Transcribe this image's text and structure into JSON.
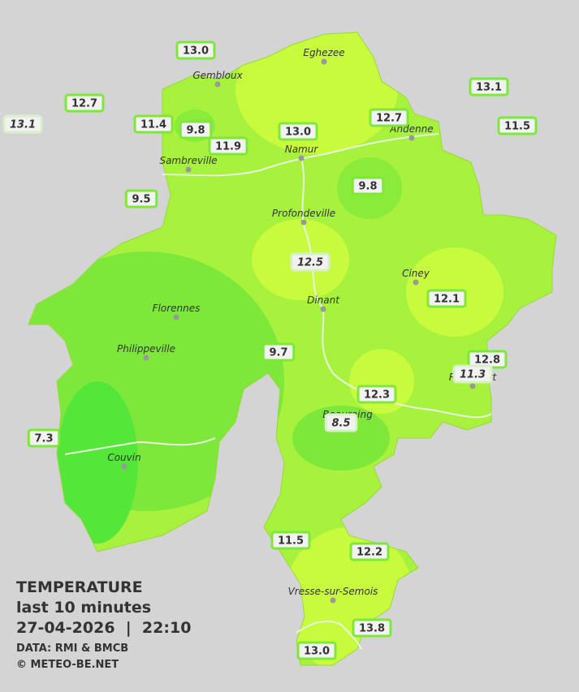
{
  "header": {
    "title": "TEMPERATURE",
    "subtitle": "last 10 minutes",
    "datetime": "27-04-2026  |  22:10",
    "source": "DATA: RMI & BMCB",
    "credit": "© METEO-BE.NET"
  },
  "cities": [
    "Eghezee",
    "Gembloux",
    "Andenne",
    "Namur",
    "Sambreville",
    "Profondeville",
    "Ciney",
    "Dinant",
    "Florennes",
    "Philippeville",
    "Rochefort",
    "Beauraing",
    "Couvin",
    "Vresse-sur-Semois"
  ],
  "stations": [
    {
      "label": "13.0",
      "italic": false
    },
    {
      "label": "12.7",
      "italic": false
    },
    {
      "label": "13.1",
      "italic": true
    },
    {
      "label": "11.4",
      "italic": false
    },
    {
      "label": "9.8",
      "italic": false
    },
    {
      "label": "11.9",
      "italic": false
    },
    {
      "label": "13.0",
      "italic": false
    },
    {
      "label": "12.7",
      "italic": false
    },
    {
      "label": "13.1",
      "italic": false
    },
    {
      "label": "11.5",
      "italic": false
    },
    {
      "label": "9.5",
      "italic": false
    },
    {
      "label": "9.8",
      "italic": false
    },
    {
      "label": "12.5",
      "italic": true
    },
    {
      "label": "12.1",
      "italic": false
    },
    {
      "label": "9.7",
      "italic": false
    },
    {
      "label": "12.8",
      "italic": false
    },
    {
      "label": "11.3",
      "italic": true
    },
    {
      "label": "12.3",
      "italic": false
    },
    {
      "label": "8.5",
      "italic": true
    },
    {
      "label": "7.3",
      "italic": false
    },
    {
      "label": "11.5",
      "italic": false
    },
    {
      "label": "12.2",
      "italic": false
    },
    {
      "label": "13.8",
      "italic": false
    },
    {
      "label": "13.0",
      "italic": false
    }
  ]
}
